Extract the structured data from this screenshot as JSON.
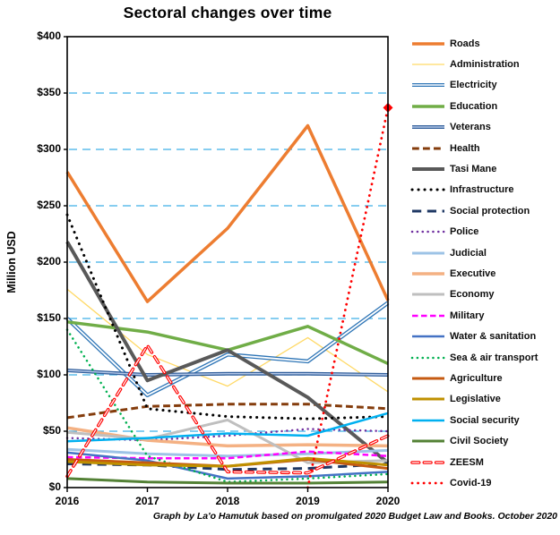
{
  "title": "Sectoral changes over time",
  "y_axis_title": "Million USD",
  "footer": "Graph by La'o Hamutuk based on promulgated 2020 Budget Law and Books.  October 2020",
  "colors": {
    "background": "#ffffff",
    "gridline": "#3fafe8",
    "axis": "#000000",
    "legend_text": "#0d0d0d"
  },
  "chart_data": {
    "type": "line",
    "x": [
      2016,
      2017,
      2018,
      2019,
      2020
    ],
    "xlabel": "",
    "ylabel": "Million USD",
    "ylim": [
      0,
      400
    ],
    "ytick_step": 50,
    "ytick_prefix": "$",
    "grid": "horizontal-dashed",
    "legend_position": "right",
    "series": [
      {
        "name": "Roads",
        "color": "#ED7D31",
        "width": 3.5,
        "dash": "solid",
        "inner": null,
        "values": [
          280,
          165,
          230,
          321,
          166
        ]
      },
      {
        "name": "Administration",
        "color": "#FFD966",
        "width": 1.3,
        "dash": "solid",
        "inner": null,
        "values": [
          176,
          118,
          90,
          133,
          85
        ]
      },
      {
        "name": "Electricity",
        "color": "#2E75B6",
        "width": 4.5,
        "dash": "solid",
        "inner": "#FFFFFF",
        "values": [
          150,
          82,
          118,
          112,
          164
        ]
      },
      {
        "name": "Education",
        "color": "#70AD47",
        "width": 3.5,
        "dash": "solid",
        "inner": null,
        "values": [
          147,
          138,
          122,
          143,
          110
        ]
      },
      {
        "name": "Veterans",
        "color": "#33609C",
        "width": 4,
        "dash": "solid",
        "inner": "#B4C7E7",
        "values": [
          104,
          100,
          101,
          101,
          100
        ]
      },
      {
        "name": "Health",
        "color": "#843C0C",
        "width": 3,
        "dash": "dash",
        "inner": null,
        "values": [
          62,
          72,
          74,
          74,
          70
        ]
      },
      {
        "name": "Tasi Mane",
        "color": "#595959",
        "width": 4,
        "dash": "solid",
        "inner": null,
        "values": [
          218,
          95,
          122,
          80,
          22
        ]
      },
      {
        "name": "Infrastructure",
        "color": "#000000",
        "width": 3,
        "dash": "dot",
        "inner": null,
        "values": [
          242,
          70,
          63,
          61,
          63
        ]
      },
      {
        "name": "Social protection",
        "color": "#1F3864",
        "width": 3,
        "dash": "longdash",
        "inner": null,
        "values": [
          21,
          20,
          16,
          17,
          21
        ]
      },
      {
        "name": "Police",
        "color": "#7030A0",
        "width": 2.5,
        "dash": "dot",
        "inner": null,
        "values": [
          44,
          42,
          46,
          52,
          50
        ]
      },
      {
        "name": "Judicial",
        "color": "#9DC3E6",
        "width": 3,
        "dash": "solid",
        "inner": null,
        "values": [
          34,
          30,
          28,
          30,
          33
        ]
      },
      {
        "name": "Executive",
        "color": "#F4B183",
        "width": 3.5,
        "dash": "solid",
        "inner": null,
        "values": [
          53,
          42,
          37,
          38,
          37
        ]
      },
      {
        "name": "Economy",
        "color": "#BFBFBF",
        "width": 3,
        "dash": "solid",
        "inner": null,
        "values": [
          49,
          43,
          60,
          22,
          24
        ]
      },
      {
        "name": "Military",
        "color": "#FF00FF",
        "width": 2.5,
        "dash": "dash",
        "inner": null,
        "values": [
          27,
          26,
          26,
          32,
          28
        ]
      },
      {
        "name": "Water & sanitation",
        "color": "#4472C4",
        "width": 2.5,
        "dash": "solid",
        "inner": null,
        "values": [
          31,
          24,
          8,
          10,
          14
        ]
      },
      {
        "name": "Sea & air transport",
        "color": "#00B050",
        "width": 2.5,
        "dash": "dot",
        "inner": null,
        "values": [
          140,
          28,
          5,
          8,
          12
        ]
      },
      {
        "name": "Agriculture",
        "color": "#C55A11",
        "width": 3,
        "dash": "solid",
        "inner": null,
        "values": [
          25,
          22,
          19,
          25,
          17
        ]
      },
      {
        "name": "Legislative",
        "color": "#BF9000",
        "width": 3,
        "dash": "solid",
        "inner": null,
        "values": [
          23,
          20,
          19,
          26,
          20
        ]
      },
      {
        "name": "Social security",
        "color": "#00B0F0",
        "width": 2.5,
        "dash": "solid",
        "inner": null,
        "values": [
          41,
          44,
          48,
          46,
          66
        ]
      },
      {
        "name": "Civil Society",
        "color": "#538135",
        "width": 3,
        "dash": "solid",
        "inner": null,
        "values": [
          8,
          5,
          4,
          4,
          5
        ]
      },
      {
        "name": "ZEESM",
        "color": "#FF0000",
        "width": 3.5,
        "dash": "hollowdash",
        "inner": "#FFFFFF",
        "values": [
          10,
          126,
          14,
          13,
          46
        ]
      },
      {
        "name": "Covid-19",
        "color": "#FF0000",
        "width": 2.8,
        "dash": "dot",
        "inner": null,
        "marker_end": "diamond",
        "values": [
          null,
          null,
          null,
          0,
          337
        ]
      }
    ]
  }
}
